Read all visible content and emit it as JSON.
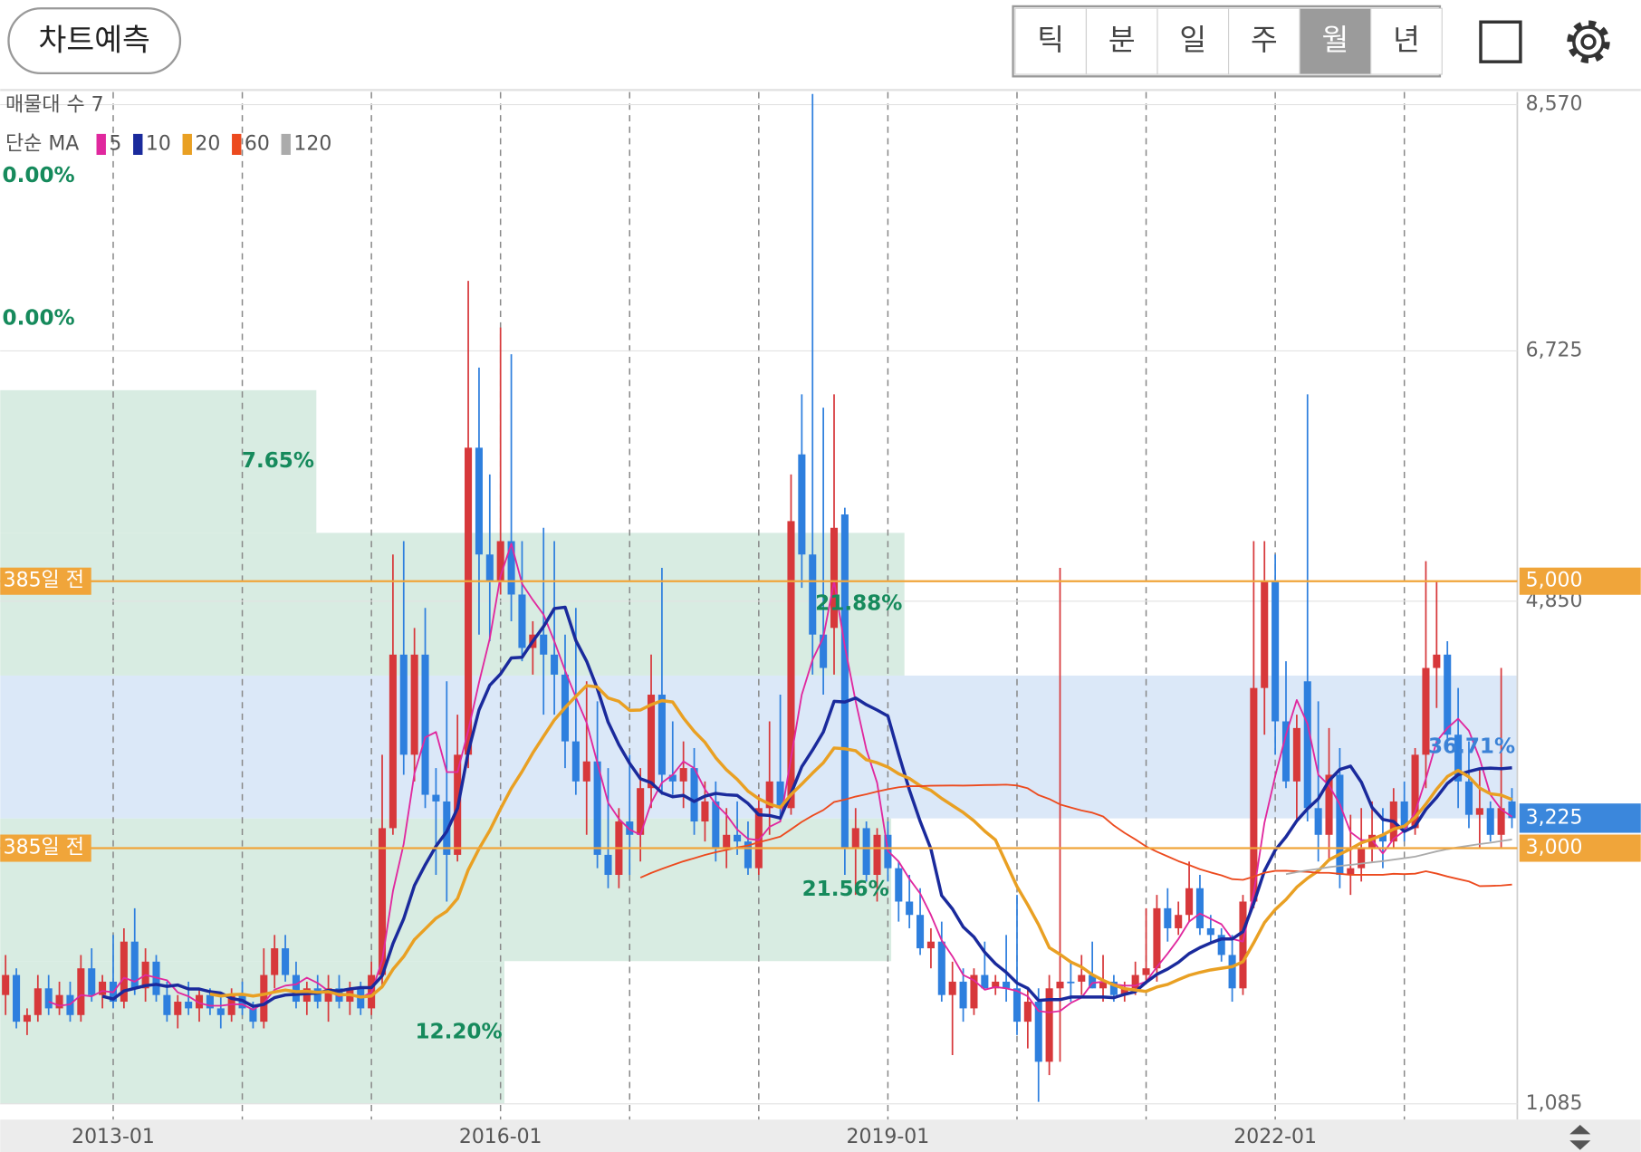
{
  "toolbar": {
    "button": "차트예측",
    "periods": [
      "틱",
      "분",
      "일",
      "주",
      "월",
      "년"
    ],
    "selected": 4
  },
  "chart_data": {
    "type": "candlestick",
    "colors": {
      "up": "#d7383b",
      "down": "#2e7fde"
    },
    "candles": [
      [
        1900,
        2200,
        1750,
        2050
      ],
      [
        2050,
        2100,
        1650,
        1700
      ],
      [
        1700,
        1800,
        1600,
        1750
      ],
      [
        1750,
        2050,
        1700,
        1950
      ],
      [
        1950,
        2050,
        1750,
        1800
      ],
      [
        1800,
        2000,
        1750,
        1900
      ],
      [
        1900,
        2000,
        1700,
        1750
      ],
      [
        1750,
        2200,
        1700,
        2100
      ],
      [
        2100,
        2250,
        1850,
        1900
      ],
      [
        1900,
        2050,
        1800,
        2000
      ],
      [
        2000,
        2350,
        1800,
        1850
      ],
      [
        1850,
        2400,
        1800,
        2300
      ],
      [
        2300,
        2550,
        1900,
        1950
      ],
      [
        1950,
        2250,
        1850,
        2150
      ],
      [
        2150,
        2200,
        1850,
        1900
      ],
      [
        1900,
        2000,
        1700,
        1750
      ],
      [
        1750,
        1900,
        1650,
        1850
      ],
      [
        1850,
        2000,
        1750,
        1800
      ],
      [
        1800,
        1950,
        1700,
        1900
      ],
      [
        1900,
        1950,
        1750,
        1800
      ],
      [
        1800,
        1900,
        1650,
        1750
      ],
      [
        1750,
        1950,
        1700,
        1900
      ],
      [
        1900,
        2000,
        1750,
        1800
      ],
      [
        1800,
        1850,
        1650,
        1700
      ],
      [
        1700,
        2250,
        1650,
        2050
      ],
      [
        2050,
        2350,
        1950,
        2250
      ],
      [
        2250,
        2350,
        2000,
        2050
      ],
      [
        2050,
        2150,
        1800,
        1850
      ],
      [
        1850,
        2000,
        1750,
        1950
      ],
      [
        1950,
        2050,
        1800,
        1850
      ],
      [
        1850,
        2050,
        1700,
        1950
      ],
      [
        1950,
        2050,
        1800,
        1850
      ],
      [
        1850,
        2000,
        1750,
        1950
      ],
      [
        1950,
        2000,
        1750,
        1800
      ],
      [
        1800,
        2150,
        1750,
        2050
      ],
      [
        2050,
        3700,
        1950,
        3150
      ],
      [
        3150,
        5200,
        3100,
        4450
      ],
      [
        4450,
        5300,
        3550,
        3700
      ],
      [
        3700,
        4650,
        3500,
        4450
      ],
      [
        4450,
        4800,
        3300,
        3400
      ],
      [
        3400,
        3600,
        2800,
        3350
      ],
      [
        3350,
        4250,
        2600,
        2950
      ],
      [
        2950,
        4000,
        2900,
        3700
      ],
      [
        3700,
        7250,
        3600,
        6000
      ],
      [
        6000,
        6600,
        4600,
        5200
      ],
      [
        5200,
        5800,
        4550,
        5000
      ],
      [
        5000,
        6900,
        4900,
        5300
      ],
      [
        5300,
        6700,
        4700,
        4900
      ],
      [
        4900,
        5300,
        4400,
        4500
      ],
      [
        4500,
        4700,
        4300,
        4600
      ],
      [
        4600,
        5400,
        4000,
        4450
      ],
      [
        4450,
        5300,
        4000,
        4300
      ],
      [
        4300,
        4600,
        3600,
        3800
      ],
      [
        3800,
        4800,
        3400,
        3500
      ],
      [
        3500,
        4250,
        3100,
        3650
      ],
      [
        3650,
        4100,
        2850,
        2950
      ],
      [
        2950,
        3600,
        2700,
        2800
      ],
      [
        2800,
        3300,
        2700,
        3200
      ],
      [
        3200,
        3700,
        2800,
        3100
      ],
      [
        3100,
        3600,
        2900,
        3450
      ],
      [
        3450,
        4450,
        3300,
        4150
      ],
      [
        4150,
        5100,
        3400,
        3550
      ],
      [
        3550,
        3950,
        3400,
        3500
      ],
      [
        3500,
        3800,
        3300,
        3600
      ],
      [
        3600,
        3750,
        3100,
        3200
      ],
      [
        3200,
        3500,
        3050,
        3350
      ],
      [
        3350,
        3500,
        2900,
        3000
      ],
      [
        3000,
        3300,
        2850,
        3100
      ],
      [
        3100,
        3350,
        2950,
        3050
      ],
      [
        3050,
        3200,
        2800,
        2850
      ],
      [
        2850,
        3400,
        2800,
        3300
      ],
      [
        3300,
        3950,
        3100,
        3500
      ],
      [
        3500,
        4150,
        3200,
        3300
      ],
      [
        3300,
        5800,
        3250,
        5450
      ],
      [
        5950,
        6400,
        4950,
        5200
      ],
      [
        5200,
        8650,
        4300,
        4600
      ],
      [
        4600,
        6300,
        4150,
        4350
      ],
      [
        4650,
        6400,
        4300,
        5400
      ],
      [
        5500,
        5550,
        2800,
        3000
      ],
      [
        3000,
        3300,
        2650,
        3150
      ],
      [
        3150,
        3200,
        2750,
        2800
      ],
      [
        2800,
        3150,
        2600,
        3100
      ],
      [
        3100,
        3200,
        2750,
        2850
      ],
      [
        2850,
        2900,
        2450,
        2600
      ],
      [
        2600,
        2800,
        2400,
        2500
      ],
      [
        2500,
        2700,
        2200,
        2250
      ],
      [
        2250,
        2400,
        2100,
        2300
      ],
      [
        2300,
        2450,
        1850,
        1900
      ],
      [
        1900,
        2150,
        1450,
        2000
      ],
      [
        2000,
        2100,
        1700,
        1800
      ],
      [
        1800,
        2100,
        1750,
        2050
      ],
      [
        2050,
        2300,
        1950,
        1950
      ],
      [
        1950,
        2050,
        1900,
        2000
      ],
      [
        2000,
        2350,
        1850,
        1950
      ],
      [
        1950,
        2650,
        1600,
        1700
      ],
      [
        1700,
        1950,
        1500,
        1850
      ],
      [
        1850,
        1950,
        1100,
        1400
      ],
      [
        1400,
        2050,
        1300,
        1950
      ],
      [
        1950,
        5100,
        1400,
        2000
      ],
      [
        2000,
        2150,
        1850,
        2000
      ],
      [
        2000,
        2200,
        1900,
        2050
      ],
      [
        2050,
        2300,
        1950,
        1950
      ],
      [
        1950,
        2200,
        1850,
        2000
      ],
      [
        2000,
        2050,
        1850,
        1900
      ],
      [
        1900,
        2000,
        1850,
        1950
      ],
      [
        1950,
        2150,
        1900,
        2050
      ],
      [
        2050,
        2550,
        2000,
        2100
      ],
      [
        2100,
        2650,
        2000,
        2550
      ],
      [
        2550,
        2700,
        2300,
        2400
      ],
      [
        2400,
        2600,
        2350,
        2500
      ],
      [
        2500,
        2900,
        2450,
        2700
      ],
      [
        2700,
        2800,
        2350,
        2400
      ],
      [
        2400,
        2500,
        2300,
        2350
      ],
      [
        2350,
        2400,
        2150,
        2200
      ],
      [
        2200,
        2350,
        1850,
        1950
      ],
      [
        1950,
        2650,
        1900,
        2600
      ],
      [
        2600,
        5300,
        2550,
        4200
      ],
      [
        4200,
        5300,
        3850,
        5000
      ],
      [
        5000,
        5200,
        3700,
        3950
      ],
      [
        3950,
        4400,
        3450,
        3500
      ],
      [
        3500,
        4000,
        3200,
        3900
      ],
      [
        4250,
        6400,
        3200,
        3300
      ],
      [
        3300,
        4100,
        2900,
        3100
      ],
      [
        3100,
        3900,
        2900,
        3550
      ],
      [
        3550,
        3750,
        2700,
        2800
      ],
      [
        2800,
        3250,
        2650,
        2850
      ],
      [
        2850,
        3300,
        2750,
        3000
      ],
      [
        3000,
        3350,
        2900,
        3100
      ],
      [
        3100,
        3300,
        2850,
        3050
      ],
      [
        3050,
        3450,
        3000,
        3350
      ],
      [
        3350,
        3500,
        3050,
        3150
      ],
      [
        3150,
        3750,
        3100,
        3700
      ],
      [
        3700,
        5150,
        3450,
        4350
      ],
      [
        4350,
        5000,
        4050,
        4450
      ],
      [
        4450,
        4550,
        3750,
        3850
      ],
      [
        3850,
        4200,
        3300,
        3500
      ],
      [
        3500,
        3800,
        3150,
        3250
      ],
      [
        3250,
        3600,
        3000,
        3300
      ],
      [
        3300,
        3350,
        3050,
        3100
      ],
      [
        3100,
        4350,
        3000,
        3300
      ],
      [
        3350,
        3450,
        3150,
        3225
      ]
    ],
    "xlim": [
      -0.5,
      140.5
    ],
    "xticks": [
      {
        "value": 10,
        "label": "2013-01"
      },
      {
        "value": 22,
        "label": null
      },
      {
        "value": 34,
        "label": null
      },
      {
        "value": 46,
        "label": "2016-01"
      },
      {
        "value": 58,
        "label": null
      },
      {
        "value": 70,
        "label": null
      },
      {
        "value": 82,
        "label": "2019-01"
      },
      {
        "value": 94,
        "label": null
      },
      {
        "value": 106,
        "label": null
      },
      {
        "value": 118,
        "label": "2022-01"
      },
      {
        "value": 130,
        "label": null
      }
    ],
    "ylim": [
      967,
      8664
    ],
    "yticks": [
      {
        "value": 8570,
        "label": "8,570"
      },
      {
        "value": 6725,
        "label": "6,725"
      },
      {
        "value": 4850,
        "label": "4,850"
      },
      {
        "value": 1085,
        "label": "1,085"
      }
    ],
    "grid": true,
    "volume_profile": {
      "title": "매물대 수 7",
      "bins": [
        1085,
        2154,
        3223,
        4293,
        5362,
        6431,
        7501,
        8570
      ],
      "values": [
        12.2,
        21.56,
        36.71,
        21.88,
        7.65,
        0.0,
        0.0
      ],
      "value_labels": [
        "12.20%",
        "21.56%",
        "36.71%",
        "21.88%",
        "7.65%",
        "0.00%",
        "0.00%"
      ]
    },
    "moving_averages": {
      "title": "단순 MA",
      "series": [
        {
          "period": 5,
          "color": "#e0289e"
        },
        {
          "period": 10,
          "color": "#1a2a9c"
        },
        {
          "period": 20,
          "color": "#e9a023"
        },
        {
          "period": 60,
          "color": "#ec4a1e"
        },
        {
          "period": 120,
          "color": "#ababab"
        }
      ]
    },
    "price_lines": [
      {
        "value": 5000,
        "label": "5,000",
        "note": "385일 전",
        "color": "#f0a53a"
      },
      {
        "value": 3000,
        "label": "3,000",
        "note": "385일 전",
        "color": "#f0a53a"
      }
    ],
    "current_price": {
      "value": 3225,
      "label": "3,225",
      "color": "#3b87dc"
    }
  }
}
